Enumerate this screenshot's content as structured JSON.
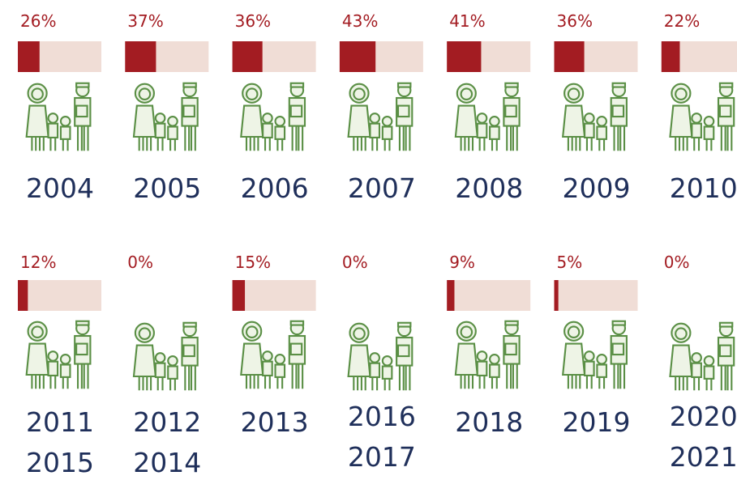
{
  "chart_data": {
    "type": "progress",
    "categories": [
      [
        "2004"
      ],
      [
        "2005"
      ],
      [
        "2006"
      ],
      [
        "2007"
      ],
      [
        "2008"
      ],
      [
        "2009"
      ],
      [
        "2010"
      ],
      [
        "2011",
        "2015"
      ],
      [
        "2012",
        "2014"
      ],
      [
        "2013"
      ],
      [
        "2016",
        "2017"
      ],
      [
        "2018"
      ],
      [
        "2019"
      ],
      [
        "2020",
        "2021"
      ]
    ],
    "values": [
      26,
      37,
      36,
      43,
      41,
      36,
      22,
      12,
      0,
      15,
      0,
      9,
      5,
      0
    ],
    "value_labels": [
      "26%",
      "37%",
      "36%",
      "43%",
      "41%",
      "36%",
      "22%",
      "12%",
      "0%",
      "15%",
      "0%",
      "9%",
      "5%",
      "0%"
    ],
    "xlim": [
      0,
      100
    ],
    "color": "#a31c22",
    "track_color": "#f0ddd6"
  }
}
